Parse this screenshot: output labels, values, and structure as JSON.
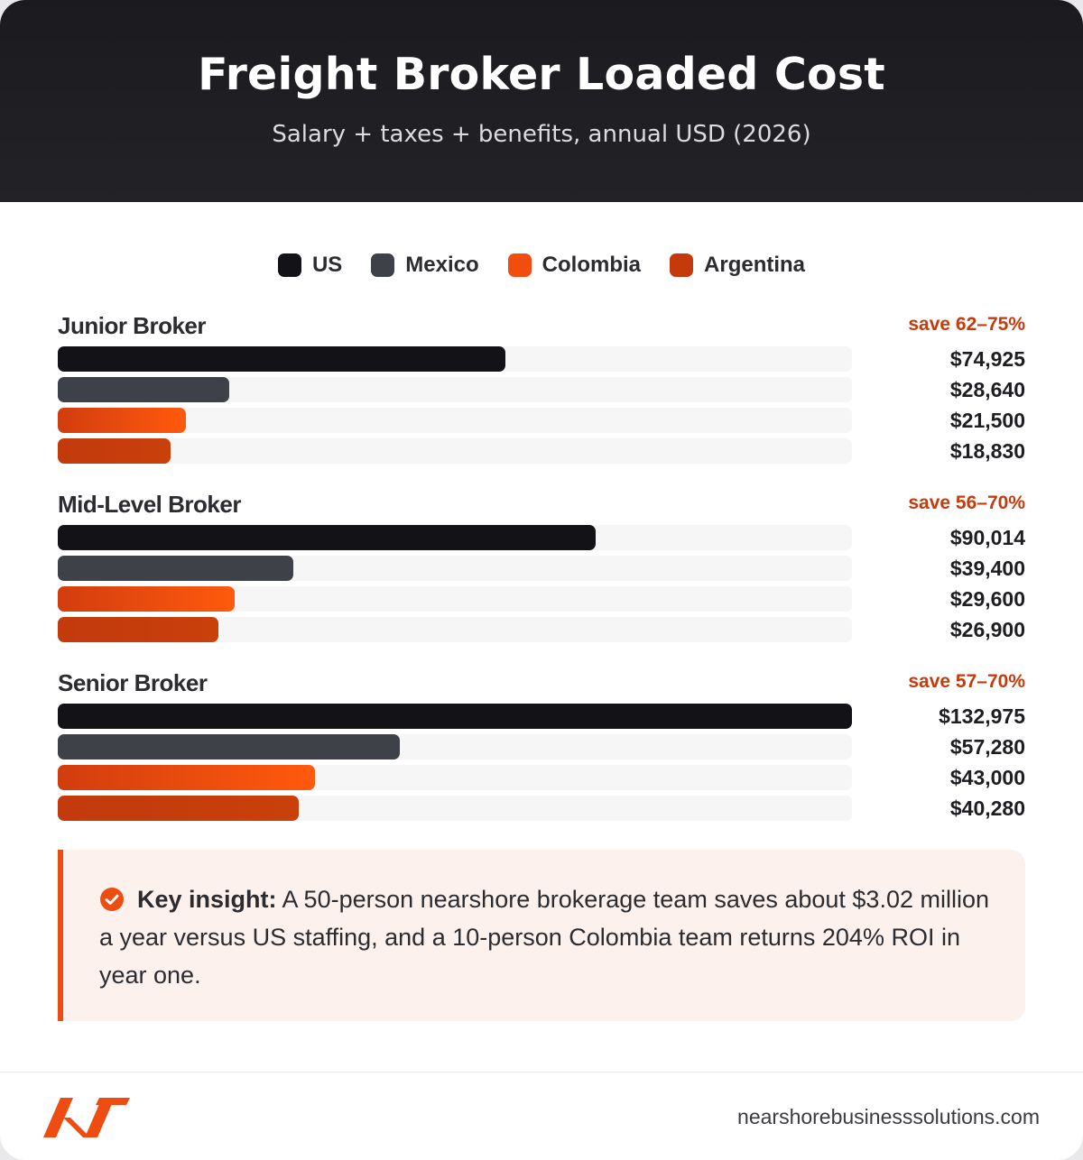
{
  "header": {
    "title": "Freight Broker Loaded Cost",
    "subtitle": "Salary + taxes + benefits, annual USD (2026)"
  },
  "chart_data": {
    "type": "bar",
    "orientation": "horizontal",
    "title": "Freight Broker Loaded Cost",
    "subtitle": "Salary + taxes + benefits, annual USD (2026)",
    "legend_placement": "top-center",
    "xlim": [
      0,
      132975
    ],
    "series": [
      {
        "name": "US",
        "color": "#121217"
      },
      {
        "name": "Mexico",
        "color": "#3e4148"
      },
      {
        "name": "Colombia",
        "color": "#f24c0e"
      },
      {
        "name": "Argentina",
        "color": "#c53a0b"
      }
    ],
    "groups": [
      {
        "label": "Junior Broker",
        "savings": "save 62–75%",
        "values": [
          74925,
          28640,
          21500,
          18830
        ],
        "labels": [
          "$74,925",
          "$28,640",
          "$21,500",
          "$18,830"
        ]
      },
      {
        "label": "Mid-Level Broker",
        "savings": "save 56–70%",
        "values": [
          90014,
          39400,
          29600,
          26900
        ],
        "labels": [
          "$90,014",
          "$39,400",
          "$29,600",
          "$26,900"
        ]
      },
      {
        "label": "Senior Broker",
        "savings": "save 57–70%",
        "values": [
          132975,
          57280,
          43000,
          40280
        ],
        "labels": [
          "$132,975",
          "$57,280",
          "$43,000",
          "$40,280"
        ]
      }
    ]
  },
  "insight": {
    "icon": "check-circle-icon",
    "label": "Key insight:",
    "text": "A 50-person nearshore brokerage team saves about $3.02 million a year versus US staffing, and a 10-person Colombia team returns 204% ROI in year one."
  },
  "footer": {
    "logo_icon": "nearshore-logo-icon",
    "url": "nearshorebusinesssolutions.com"
  }
}
